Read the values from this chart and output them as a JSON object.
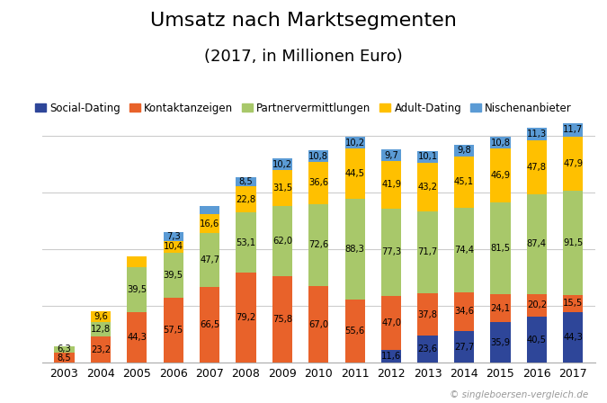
{
  "years": [
    "2003",
    "2004",
    "2005",
    "2006",
    "2007",
    "2008",
    "2009",
    "2010",
    "2011",
    "2012",
    "2013",
    "2014",
    "2015",
    "2016",
    "2017"
  ],
  "segments": {
    "Social-Dating": [
      0,
      0,
      0,
      0,
      0,
      0,
      0.3,
      0.3,
      0.3,
      11.6,
      23.6,
      27.7,
      35.9,
      40.5,
      44.3
    ],
    "Kontaktanzeigen": [
      8.5,
      23.2,
      44.3,
      57.5,
      66.5,
      79.2,
      75.8,
      67.0,
      55.6,
      47.0,
      37.8,
      34.6,
      24.1,
      20.2,
      15.5
    ],
    "Partnervermittlungen": [
      6.3,
      12.8,
      39.5,
      39.5,
      47.7,
      53.1,
      62.0,
      72.6,
      88.3,
      77.3,
      71.7,
      74.4,
      81.5,
      87.4,
      91.5
    ],
    "Adult-Dating": [
      0,
      9.6,
      9.6,
      10.4,
      16.6,
      22.8,
      31.5,
      36.6,
      44.5,
      41.9,
      43.2,
      45.1,
      46.9,
      47.8,
      47.9
    ],
    "Nischenanbieter": [
      0,
      0,
      0,
      7.3,
      7.3,
      8.5,
      10.2,
      10.8,
      10.2,
      9.7,
      10.1,
      9.8,
      10.8,
      11.3,
      11.7
    ]
  },
  "labels": {
    "Social-Dating": [
      null,
      null,
      null,
      null,
      null,
      null,
      null,
      null,
      null,
      "11,6",
      "23,6",
      "27,7",
      "35,9",
      "40,5",
      "44,3"
    ],
    "Kontaktanzeigen": [
      "8,5",
      "23,2",
      "44,3",
      "57,5",
      "66,5",
      "79,2",
      "75,8",
      "67,0",
      "55,6",
      "47,0",
      "37,8",
      "34,6",
      "24,1",
      "20,2",
      "15,5"
    ],
    "Partnervermittlungen": [
      "6,3",
      "12,8",
      "39,5",
      "39,5",
      "47,7",
      "53,1",
      "62,0",
      "72,6",
      "88,3",
      "77,3",
      "71,7",
      "74,4",
      "81,5",
      "87,4",
      "91,5"
    ],
    "Adult-Dating": [
      null,
      "9,6",
      null,
      "10,4",
      "16,6",
      "22,8",
      "31,5",
      "36,6",
      "44,5",
      "41,9",
      "43,2",
      "45,1",
      "46,9",
      "47,8",
      "47,9"
    ],
    "Nischenanbieter": [
      null,
      null,
      null,
      "7,3",
      null,
      "8,5",
      "10,2",
      "10,8",
      "10,2",
      "9,7",
      "10,1",
      "9,8",
      "10,8",
      "11,3",
      "11,7"
    ]
  },
  "colors": {
    "Social-Dating": "#2E4699",
    "Kontaktanzeigen": "#E8622A",
    "Partnervermittlungen": "#A8C86A",
    "Adult-Dating": "#FFC000",
    "Nischenanbieter": "#5B9BD5"
  },
  "title": "Umsatz nach Marktsegmenten",
  "subtitle": "(2017, in Millionen Euro)",
  "segment_order": [
    "Social-Dating",
    "Kontaktanzeigen",
    "Partnervermittlungen",
    "Adult-Dating",
    "Nischenanbieter"
  ],
  "ylim": [
    0,
    220
  ],
  "gridlines": [
    50,
    100,
    150,
    200
  ],
  "copyright": "© singleboersen-vergleich.de",
  "bg_color": "#FFFFFF",
  "label_fontsize": 7.2,
  "bar_width": 0.55,
  "title_fontsize": 16,
  "subtitle_fontsize": 13,
  "legend_fontsize": 8.5,
  "xtick_fontsize": 9
}
